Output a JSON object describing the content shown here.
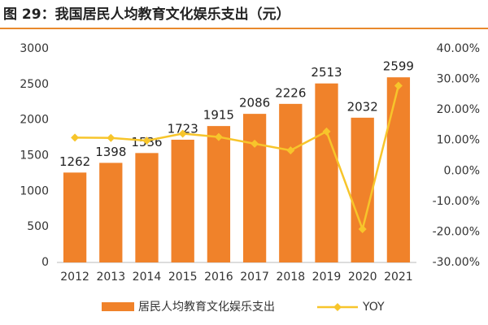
{
  "chart_data": {
    "type": "bar",
    "title": "图 29：我国居民人均教育文化娱乐支出（元）",
    "categories": [
      "2012",
      "2013",
      "2014",
      "2015",
      "2016",
      "2017",
      "2018",
      "2019",
      "2020",
      "2021"
    ],
    "series": [
      {
        "name": "居民人均教育文化娱乐支出",
        "color": "#f0822a",
        "values": [
          1262,
          1398,
          1536,
          1723,
          1915,
          2086,
          2226,
          2513,
          2032,
          2599
        ]
      },
      {
        "name": "YOY",
        "color": "#f7c52b",
        "axis": "y2",
        "values": [
          10.9,
          10.8,
          9.9,
          12.2,
          11.1,
          8.9,
          6.7,
          12.9,
          -19.1,
          27.9
        ]
      }
    ],
    "ylim": [
      0,
      3000
    ],
    "yticks": [
      0,
      500,
      1000,
      1500,
      2000,
      2500,
      3000
    ],
    "y2lim": [
      -30,
      40
    ],
    "y2ticks": [
      {
        "value": -30,
        "label": "-30.00%"
      },
      {
        "value": -20,
        "label": "-20.00%"
      },
      {
        "value": -10,
        "label": "-10.00%"
      },
      {
        "value": 0,
        "label": "0.00%"
      },
      {
        "value": 10,
        "label": "10.00%"
      },
      {
        "value": 20,
        "label": "20.00%"
      },
      {
        "value": 30,
        "label": "30.00%"
      },
      {
        "value": 40,
        "label": "40.00%"
      }
    ],
    "grid": false
  }
}
